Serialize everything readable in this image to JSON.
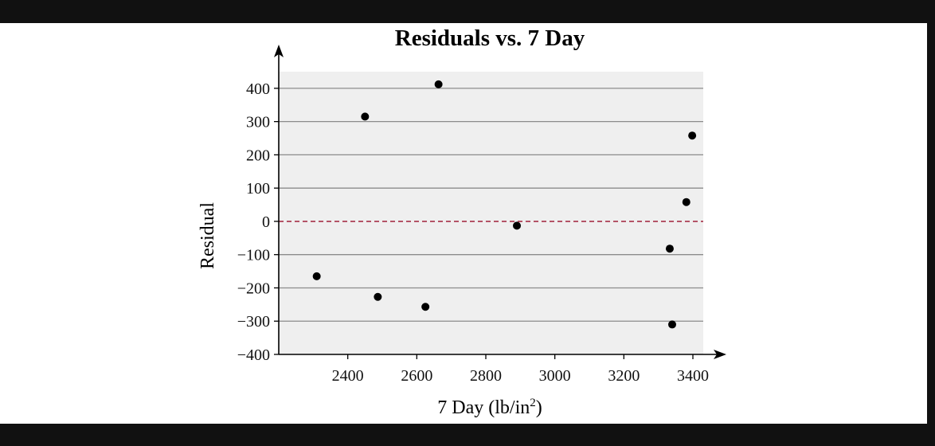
{
  "chart_data": {
    "type": "scatter",
    "title": "Residuals vs. 7 Day",
    "xlabel": "7 Day (lb/in",
    "xlabel_sup": "2",
    "xlabel_suffix": ")",
    "ylabel": "Residual",
    "xlim": [
      2200,
      3430
    ],
    "ylim": [
      -400,
      450
    ],
    "xticks": [
      {
        "value": 2400,
        "label": "2400"
      },
      {
        "value": 2600,
        "label": "2600"
      },
      {
        "value": 2800,
        "label": "2800"
      },
      {
        "value": 3000,
        "label": "3000"
      },
      {
        "value": 3200,
        "label": "3200"
      },
      {
        "value": 3400,
        "label": "3400"
      }
    ],
    "yticks": [
      {
        "value": 400,
        "label": "400"
      },
      {
        "value": 300,
        "label": "300"
      },
      {
        "value": 200,
        "label": "200"
      },
      {
        "value": 100,
        "label": "100"
      },
      {
        "value": 0,
        "label": "0"
      },
      {
        "value": -100,
        "label": "−100"
      },
      {
        "value": -200,
        "label": "−200"
      },
      {
        "value": -300,
        "label": "−300"
      },
      {
        "value": -400,
        "label": "−400"
      }
    ],
    "reference_line": {
      "y": 0,
      "style": "dashed",
      "color": "#a0203a"
    },
    "grid": true,
    "colors": {
      "plot_background": "#efefef",
      "gridline": "#8c8c8c",
      "point": "#000000",
      "axis": "#000000"
    },
    "points": [
      {
        "x": 2310,
        "y": -165
      },
      {
        "x": 2450,
        "y": 315
      },
      {
        "x": 2487,
        "y": -227
      },
      {
        "x": 2625,
        "y": -257
      },
      {
        "x": 2663,
        "y": 412
      },
      {
        "x": 2890,
        "y": -13
      },
      {
        "x": 3333,
        "y": -82
      },
      {
        "x": 3340,
        "y": -310
      },
      {
        "x": 3381,
        "y": 58
      },
      {
        "x": 3398,
        "y": 258
      }
    ]
  }
}
